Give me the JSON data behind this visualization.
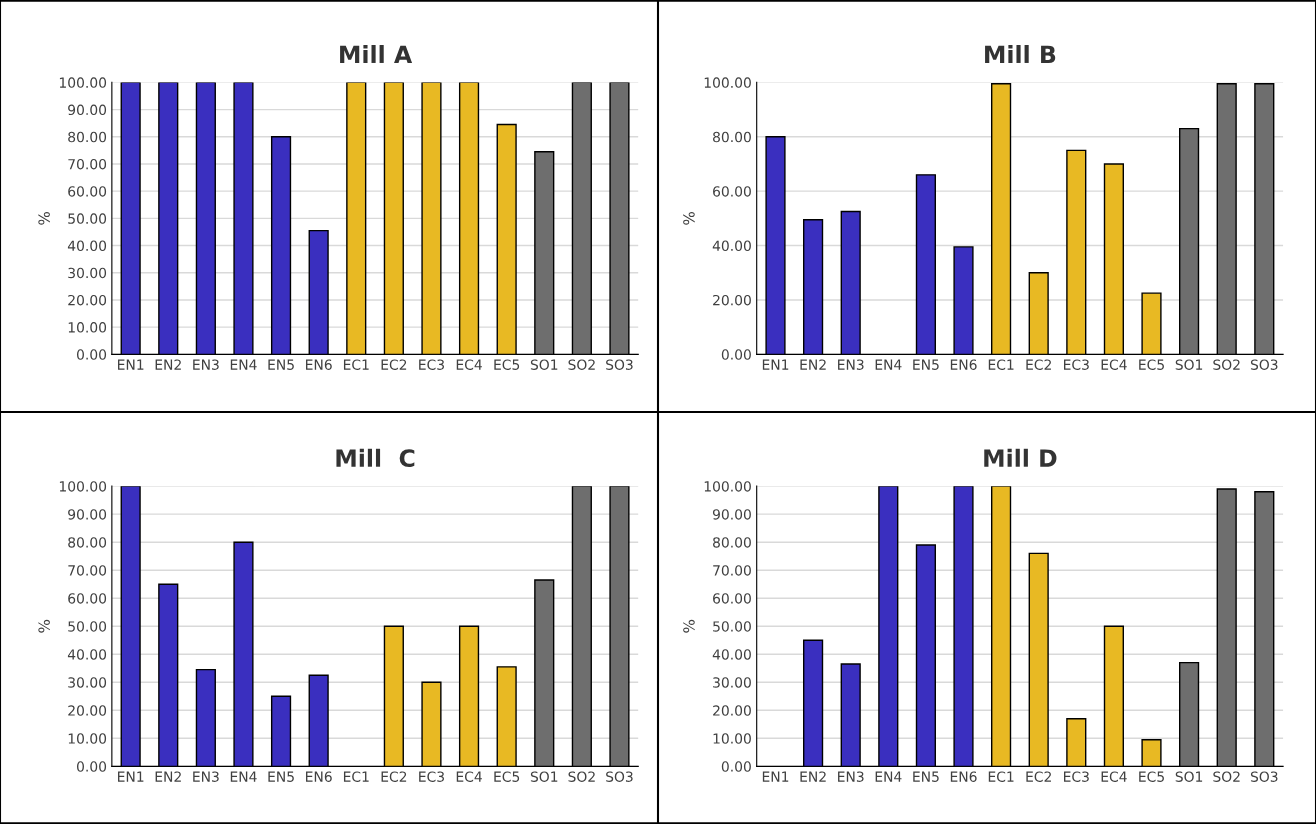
{
  "chart_data": [
    {
      "type": "bar",
      "title": "Mill A",
      "ylabel": "%",
      "categories": [
        "EN1",
        "EN2",
        "EN3",
        "EN4",
        "EN5",
        "EN6",
        "EC1",
        "EC2",
        "EC3",
        "EC4",
        "EC5",
        "SO1",
        "SO2",
        "SO3"
      ],
      "values": [
        100,
        100,
        100,
        100,
        80,
        45.5,
        100,
        100,
        100,
        100,
        84.5,
        74.5,
        100,
        100
      ],
      "colors": [
        "#3a2fbf",
        "#3a2fbf",
        "#3a2fbf",
        "#3a2fbf",
        "#3a2fbf",
        "#3a2fbf",
        "#e8b923",
        "#e8b923",
        "#e8b923",
        "#e8b923",
        "#e8b923",
        "#6e6e6e",
        "#6e6e6e",
        "#6e6e6e"
      ],
      "ylim": [
        0,
        100
      ],
      "yticks": [
        {
          "value": 0,
          "label": "0.00"
        },
        {
          "value": 10,
          "label": "10.00"
        },
        {
          "value": 20,
          "label": "20.00"
        },
        {
          "value": 30,
          "label": "30.00"
        },
        {
          "value": 40,
          "label": "40.00"
        },
        {
          "value": 50,
          "label": "50.00"
        },
        {
          "value": 60,
          "label": "60.00"
        },
        {
          "value": 70,
          "label": "70.00"
        },
        {
          "value": 80,
          "label": "80.00"
        },
        {
          "value": 90,
          "label": "90.00"
        },
        {
          "value": 100,
          "label": "100.00"
        }
      ],
      "grid": "y"
    },
    {
      "type": "bar",
      "title": "Mill B",
      "ylabel": "%",
      "categories": [
        "EN1",
        "EN2",
        "EN3",
        "EN4",
        "EN5",
        "EN6",
        "EC1",
        "EC2",
        "EC3",
        "EC4",
        "EC5",
        "SO1",
        "SO2",
        "SO3"
      ],
      "values": [
        80,
        49.5,
        52.5,
        null,
        66,
        39.5,
        99.5,
        30,
        75,
        70,
        22.5,
        83,
        99.5,
        99.5
      ],
      "colors": [
        "#3a2fbf",
        "#3a2fbf",
        "#3a2fbf",
        "#3a2fbf",
        "#3a2fbf",
        "#3a2fbf",
        "#e8b923",
        "#e8b923",
        "#e8b923",
        "#e8b923",
        "#e8b923",
        "#6e6e6e",
        "#6e6e6e",
        "#6e6e6e"
      ],
      "ylim": [
        0,
        100
      ],
      "yticks": [
        {
          "value": 0,
          "label": "0.00"
        },
        {
          "value": 20,
          "label": "20.00"
        },
        {
          "value": 40,
          "label": "40.00"
        },
        {
          "value": 60,
          "label": "60.00"
        },
        {
          "value": 80,
          "label": "80.00"
        },
        {
          "value": 100,
          "label": "100.00"
        }
      ],
      "grid": "y"
    },
    {
      "type": "bar",
      "title": "Mill  C",
      "ylabel": "%",
      "categories": [
        "EN1",
        "EN2",
        "EN3",
        "EN4",
        "EN5",
        "EN6",
        "EC1",
        "EC2",
        "EC3",
        "EC4",
        "EC5",
        "SO1",
        "SO2",
        "SO3"
      ],
      "values": [
        100,
        65,
        34.5,
        80,
        25,
        32.5,
        null,
        50,
        30,
        50,
        35.5,
        66.5,
        100,
        100
      ],
      "colors": [
        "#3a2fbf",
        "#3a2fbf",
        "#3a2fbf",
        "#3a2fbf",
        "#3a2fbf",
        "#3a2fbf",
        "#e8b923",
        "#e8b923",
        "#e8b923",
        "#e8b923",
        "#e8b923",
        "#6e6e6e",
        "#6e6e6e",
        "#6e6e6e"
      ],
      "ylim": [
        0,
        100
      ],
      "yticks": [
        {
          "value": 0,
          "label": "0.00"
        },
        {
          "value": 10,
          "label": "10.00"
        },
        {
          "value": 20,
          "label": "20.00"
        },
        {
          "value": 30,
          "label": "30.00"
        },
        {
          "value": 40,
          "label": "40.00"
        },
        {
          "value": 50,
          "label": "50.00"
        },
        {
          "value": 60,
          "label": "60.00"
        },
        {
          "value": 70,
          "label": "70.00"
        },
        {
          "value": 80,
          "label": "80.00"
        },
        {
          "value": 90,
          "label": "90.00"
        },
        {
          "value": 100,
          "label": "100.00"
        }
      ],
      "grid": "y"
    },
    {
      "type": "bar",
      "title": "Mill D",
      "ylabel": "%",
      "categories": [
        "EN1",
        "EN2",
        "EN3",
        "EN4",
        "EN5",
        "EN6",
        "EC1",
        "EC2",
        "EC3",
        "EC4",
        "EC5",
        "SO1",
        "SO2",
        "SO3"
      ],
      "values": [
        null,
        45,
        36.5,
        100,
        79,
        100,
        100,
        76,
        17,
        50,
        9.5,
        37,
        99,
        98
      ],
      "colors": [
        "#3a2fbf",
        "#3a2fbf",
        "#3a2fbf",
        "#3a2fbf",
        "#3a2fbf",
        "#3a2fbf",
        "#e8b923",
        "#e8b923",
        "#e8b923",
        "#e8b923",
        "#e8b923",
        "#6e6e6e",
        "#6e6e6e",
        "#6e6e6e"
      ],
      "ylim": [
        0,
        100
      ],
      "yticks": [
        {
          "value": 0,
          "label": "0.00"
        },
        {
          "value": 10,
          "label": "10.00"
        },
        {
          "value": 20,
          "label": "20.00"
        },
        {
          "value": 30,
          "label": "30.00"
        },
        {
          "value": 40,
          "label": "40.00"
        },
        {
          "value": 50,
          "label": "50.00"
        },
        {
          "value": 60,
          "label": "60.00"
        },
        {
          "value": 70,
          "label": "70.00"
        },
        {
          "value": 80,
          "label": "80.00"
        },
        {
          "value": 90,
          "label": "90.00"
        },
        {
          "value": 100,
          "label": "100.00"
        }
      ],
      "grid": "y"
    }
  ]
}
